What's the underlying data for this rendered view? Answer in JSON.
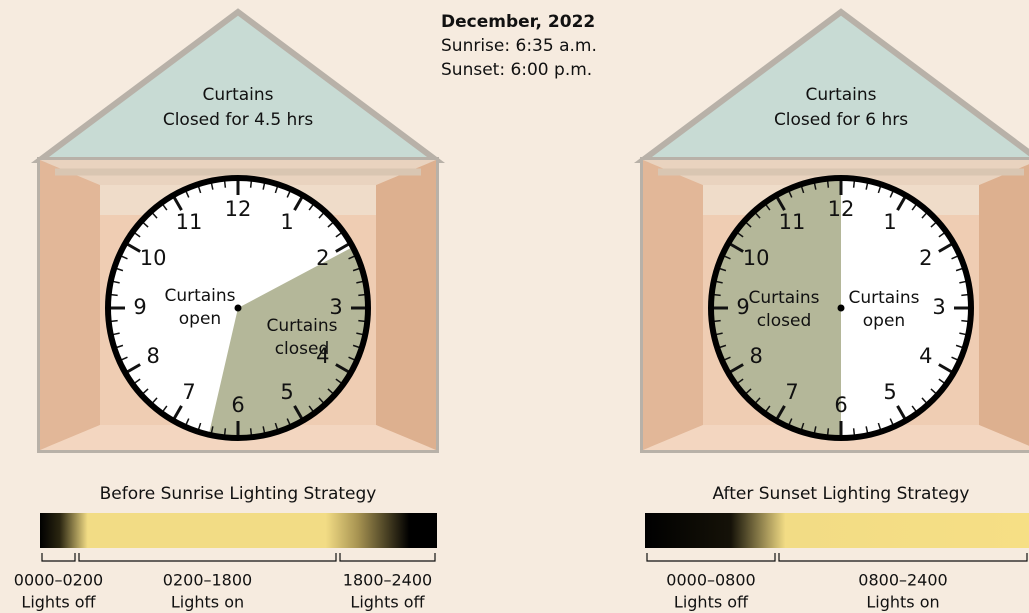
{
  "header": {
    "title": "December, 2022",
    "sunrise": "Sunrise: 6:35 a.m.",
    "sunset": "Sunset: 6:00 p.m."
  },
  "clock_numbers": [
    "12",
    "1",
    "2",
    "3",
    "4",
    "5",
    "6",
    "7",
    "8",
    "9",
    "10",
    "11"
  ],
  "panels": [
    {
      "roof_label": [
        "Curtains",
        "Closed for 4.5 hrs"
      ],
      "open_label": [
        "Curtains",
        "open"
      ],
      "closed_label": [
        "Curtains",
        "closed"
      ],
      "strategy": "Before Sunrise Lighting Strategy",
      "segments": [
        {
          "hours": "0000–0200",
          "state": "Lights off"
        },
        {
          "hours": "0200–1800",
          "state": "Lights on"
        },
        {
          "hours": "1800–2400",
          "state": "Lights off"
        }
      ]
    },
    {
      "roof_label": [
        "Curtains",
        "Closed for 6 hrs"
      ],
      "open_label": [
        "Curtains",
        "open"
      ],
      "closed_label": [
        "Curtains",
        "closed"
      ],
      "strategy": "After Sunset Lighting Strategy",
      "segments": [
        {
          "hours": "0000–0800",
          "state": "Lights off"
        },
        {
          "hours": "0800–2400",
          "state": "Lights on"
        }
      ]
    }
  ]
}
